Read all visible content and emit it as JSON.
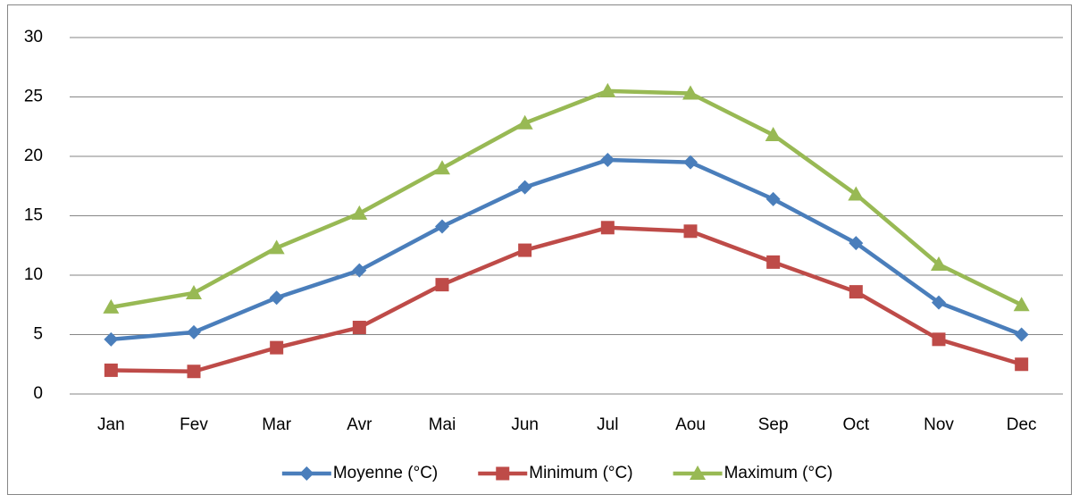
{
  "chart_data": {
    "type": "line",
    "categories": [
      "Jan",
      "Fev",
      "Mar",
      "Avr",
      "Mai",
      "Jun",
      "Jul",
      "Aou",
      "Sep",
      "Oct",
      "Nov",
      "Dec"
    ],
    "series": [
      {
        "name": "Moyenne (°C)",
        "color": "#4a7ebb",
        "marker": "diamond",
        "values": [
          4.6,
          5.2,
          8.1,
          10.4,
          14.1,
          17.4,
          19.7,
          19.5,
          16.4,
          12.7,
          7.7,
          5.0
        ]
      },
      {
        "name": "Minimum (°C)",
        "color": "#be4b48",
        "marker": "square",
        "values": [
          2.0,
          1.9,
          3.9,
          5.6,
          9.2,
          12.1,
          14.0,
          13.7,
          11.1,
          8.6,
          4.6,
          2.5
        ]
      },
      {
        "name": "Maximum (°C)",
        "color": "#98b954",
        "marker": "triangle",
        "values": [
          7.3,
          8.5,
          12.3,
          15.2,
          19.0,
          22.8,
          25.5,
          25.3,
          21.8,
          16.8,
          10.9,
          7.5
        ]
      }
    ],
    "ylim": [
      0,
      30
    ],
    "yticks": [
      0,
      5,
      10,
      15,
      20,
      25,
      30
    ],
    "grid": true,
    "legend": "bottom"
  }
}
